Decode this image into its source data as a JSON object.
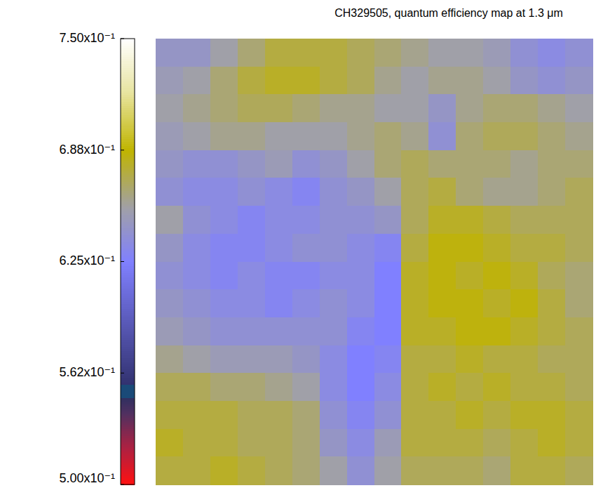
{
  "chart_data": {
    "type": "heatmap",
    "title": "CH329505, quantum efficiency map at 1.3 μm",
    "color_range": [
      0.5,
      0.75
    ],
    "color_ticks": [
      {
        "value": 0.5,
        "label": "5.00x10⁻¹"
      },
      {
        "value": 0.5625,
        "label": "5.62x10⁻¹"
      },
      {
        "value": 0.625,
        "label": "6.25x10⁻¹"
      },
      {
        "value": 0.6875,
        "label": "6.88x10⁻¹"
      },
      {
        "value": 0.75,
        "label": "7.50x10⁻¹"
      }
    ],
    "tick_labels": false,
    "cells": [
      [
        0.645,
        0.645,
        0.655,
        0.665,
        0.675,
        0.675,
        0.675,
        0.67,
        0.665,
        0.66,
        0.655,
        0.655,
        0.65,
        0.64,
        0.635,
        0.64
      ],
      [
        0.65,
        0.655,
        0.665,
        0.675,
        0.68,
        0.68,
        0.675,
        0.67,
        0.66,
        0.655,
        0.66,
        0.66,
        0.655,
        0.645,
        0.64,
        0.645
      ],
      [
        0.655,
        0.66,
        0.665,
        0.67,
        0.67,
        0.665,
        0.66,
        0.66,
        0.655,
        0.655,
        0.645,
        0.66,
        0.665,
        0.665,
        0.66,
        0.655
      ],
      [
        0.65,
        0.655,
        0.66,
        0.66,
        0.655,
        0.655,
        0.655,
        0.66,
        0.665,
        0.66,
        0.64,
        0.665,
        0.67,
        0.67,
        0.665,
        0.66
      ],
      [
        0.645,
        0.64,
        0.64,
        0.645,
        0.65,
        0.64,
        0.645,
        0.655,
        0.665,
        0.67,
        0.665,
        0.665,
        0.665,
        0.66,
        0.665,
        0.665
      ],
      [
        0.64,
        0.635,
        0.635,
        0.64,
        0.635,
        0.63,
        0.64,
        0.645,
        0.655,
        0.67,
        0.675,
        0.665,
        0.66,
        0.66,
        0.665,
        0.67
      ],
      [
        0.655,
        0.64,
        0.635,
        0.63,
        0.635,
        0.635,
        0.64,
        0.64,
        0.645,
        0.67,
        0.68,
        0.68,
        0.675,
        0.67,
        0.67,
        0.67
      ],
      [
        0.645,
        0.635,
        0.63,
        0.63,
        0.635,
        0.64,
        0.64,
        0.635,
        0.63,
        0.675,
        0.685,
        0.685,
        0.68,
        0.675,
        0.675,
        0.67
      ],
      [
        0.64,
        0.635,
        0.63,
        0.635,
        0.63,
        0.63,
        0.635,
        0.635,
        0.625,
        0.68,
        0.685,
        0.68,
        0.685,
        0.68,
        0.67,
        0.665
      ],
      [
        0.645,
        0.64,
        0.635,
        0.635,
        0.63,
        0.635,
        0.64,
        0.635,
        0.625,
        0.68,
        0.685,
        0.685,
        0.68,
        0.685,
        0.675,
        0.665
      ],
      [
        0.65,
        0.645,
        0.64,
        0.64,
        0.64,
        0.64,
        0.64,
        0.63,
        0.625,
        0.68,
        0.68,
        0.685,
        0.685,
        0.68,
        0.675,
        0.67
      ],
      [
        0.66,
        0.655,
        0.65,
        0.65,
        0.65,
        0.645,
        0.635,
        0.625,
        0.63,
        0.675,
        0.675,
        0.68,
        0.675,
        0.675,
        0.67,
        0.67
      ],
      [
        0.67,
        0.67,
        0.665,
        0.665,
        0.66,
        0.655,
        0.635,
        0.625,
        0.635,
        0.675,
        0.68,
        0.675,
        0.68,
        0.675,
        0.675,
        0.67
      ],
      [
        0.675,
        0.675,
        0.675,
        0.67,
        0.67,
        0.665,
        0.64,
        0.63,
        0.64,
        0.675,
        0.675,
        0.68,
        0.675,
        0.68,
        0.68,
        0.675
      ],
      [
        0.68,
        0.675,
        0.675,
        0.67,
        0.67,
        0.665,
        0.645,
        0.635,
        0.65,
        0.675,
        0.675,
        0.675,
        0.67,
        0.675,
        0.68,
        0.675
      ],
      [
        0.675,
        0.675,
        0.68,
        0.675,
        0.67,
        0.665,
        0.655,
        0.64,
        0.655,
        0.67,
        0.67,
        0.67,
        0.665,
        0.675,
        0.675,
        0.67
      ]
    ]
  }
}
